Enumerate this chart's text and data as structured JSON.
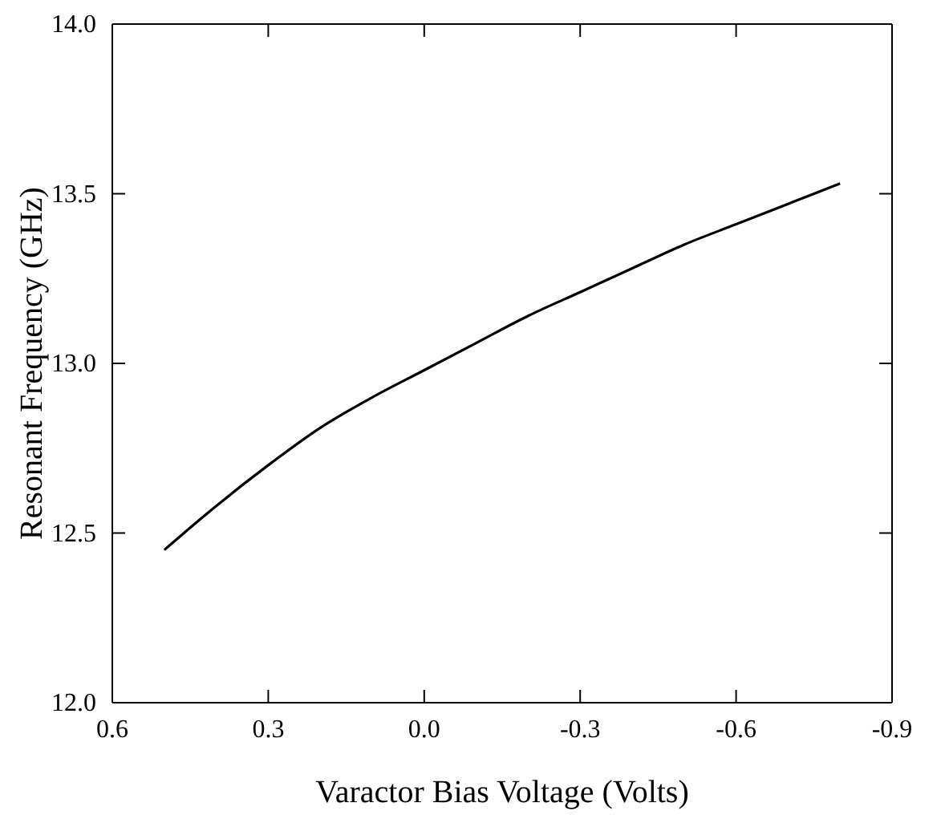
{
  "chart_data": {
    "type": "line",
    "xlabel": "Varactor Bias Voltage (Volts)",
    "ylabel": "Resonant Frequency (GHz)",
    "xlim": [
      0.6,
      -0.9
    ],
    "xticks": [
      0.6,
      0.3,
      {
        "value": 0,
        "label": "0.0"
      },
      -0.3,
      -0.6,
      -0.9
    ],
    "ylim": [
      12,
      14
    ],
    "yticks": [
      {
        "value": 12,
        "label": "12.0"
      },
      12.5,
      {
        "value": 13,
        "label": "13.0"
      },
      13.5,
      {
        "value": 14,
        "label": "14.0"
      }
    ],
    "grid": false,
    "marker": "none",
    "line_style": "solid",
    "series": [
      {
        "color": "#000000",
        "x": [
          0.5,
          0.4,
          0.3,
          0.2,
          0.1,
          0,
          -0.1,
          -0.2,
          -0.3,
          -0.4,
          -0.5,
          -0.6,
          -0.7,
          -0.8
        ],
        "values": [
          12.45,
          12.58,
          12.7,
          12.81,
          12.9,
          12.98,
          13.06,
          13.14,
          13.21,
          13.28,
          13.35,
          13.41,
          13.47,
          13.53
        ]
      }
    ]
  }
}
